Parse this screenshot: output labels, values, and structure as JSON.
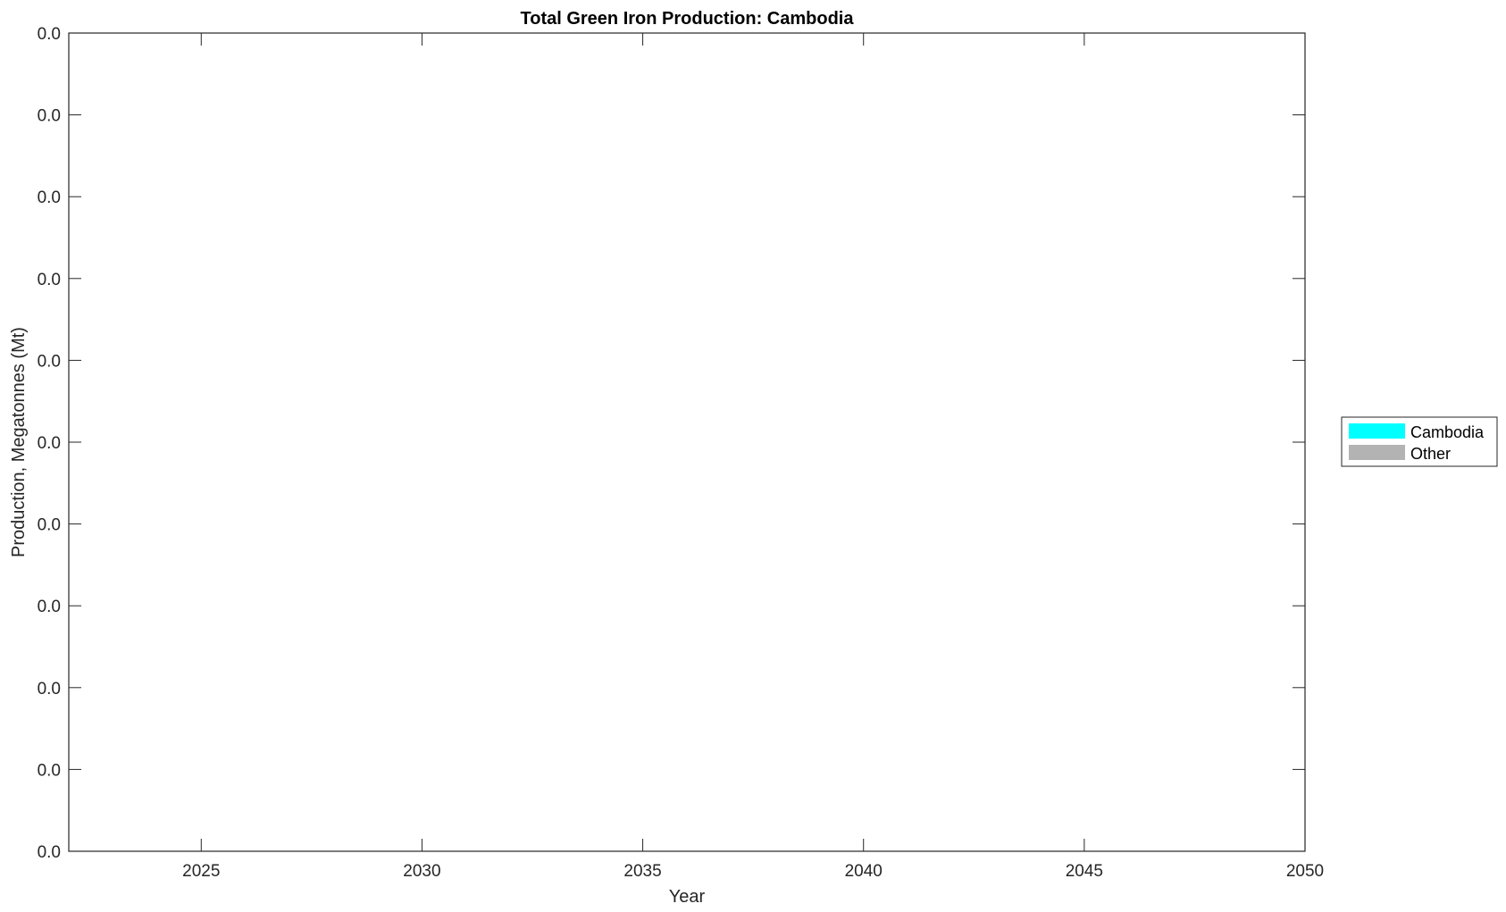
{
  "chart_data": {
    "type": "area",
    "title": "Total Green Iron Production: Cambodia",
    "xlabel": "Year",
    "ylabel": "Production, Megatonnes (Mt)",
    "xlim": [
      2022,
      2050
    ],
    "x_ticks": [
      2025,
      2030,
      2035,
      2040,
      2045,
      2050
    ],
    "y_tick_labels": [
      "0.0",
      "0.0",
      "0.0",
      "0.0",
      "0.0",
      "0.0",
      "0.0",
      "0.0",
      "0.0",
      "0.0",
      "0.0"
    ],
    "grid": false,
    "legend_position": "right",
    "series": [
      {
        "name": "Cambodia",
        "color": "#00ffff",
        "values": []
      },
      {
        "name": "Other",
        "color": "#b3b3b3",
        "values": []
      }
    ]
  }
}
